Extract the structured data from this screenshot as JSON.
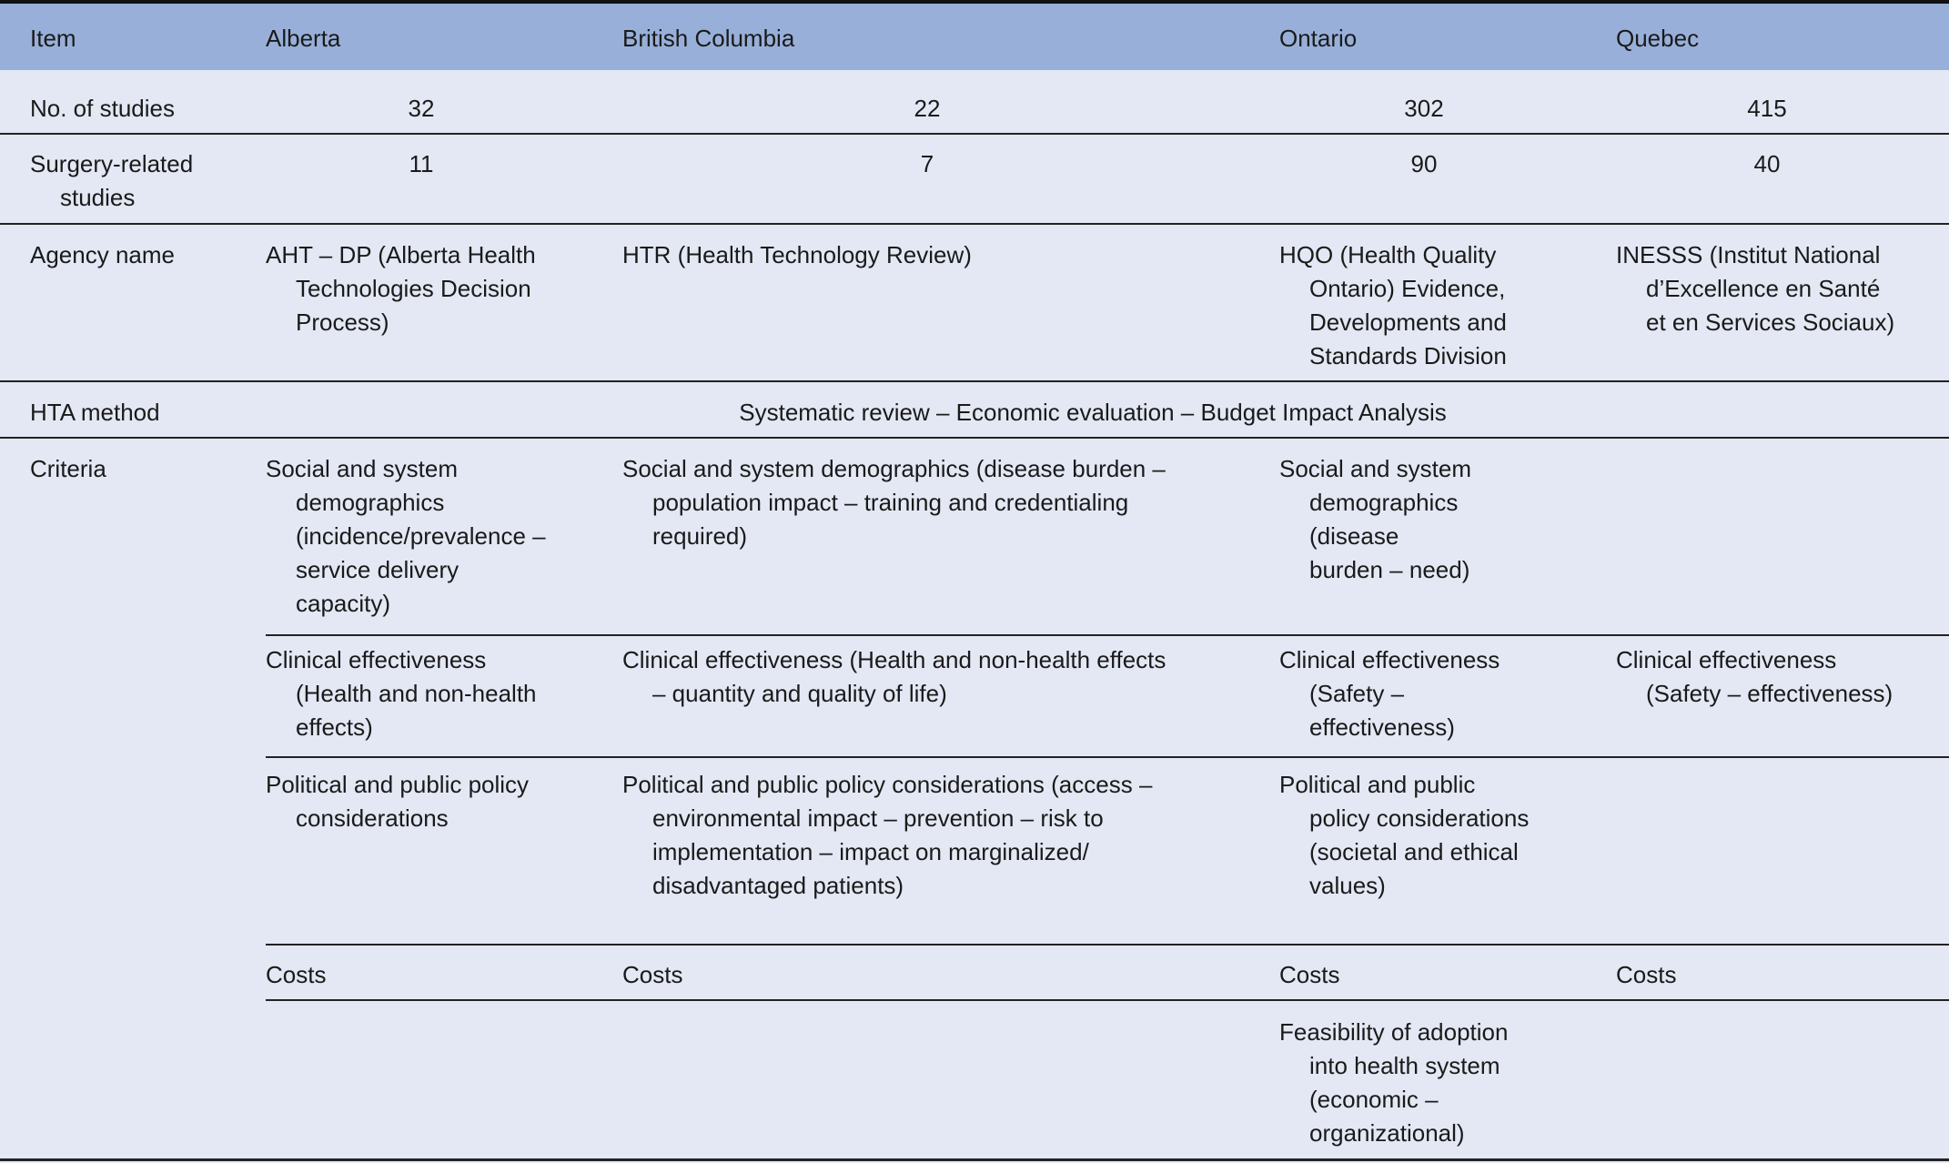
{
  "header": [
    "Item",
    "Alberta",
    "British Columbia",
    "Ontario",
    "Quebec"
  ],
  "studies": {
    "label": "No. of studies",
    "values": [
      "32",
      "22",
      "302",
      "415"
    ]
  },
  "surgery": {
    "label": "Surgery-related\nstudies",
    "values": [
      "11",
      "7",
      "90",
      "40"
    ]
  },
  "agency": {
    "label": "Agency name",
    "values": [
      "AHT – DP (Alberta Health\nTechnologies Decision\nProcess)",
      "HTR (Health Technology Review)",
      "HQO (Health Quality\nOntario) Evidence,\nDevelopments and\nStandards Division",
      "INESSS (Institut National\nd’Excellence en Santé\net en Services Sociaux)"
    ]
  },
  "hta": {
    "label": "HTA method",
    "value": "Systematic review – Economic evaluation – Budget Impact Analysis"
  },
  "criteria": {
    "label": "Criteria",
    "rows": [
      [
        "Social and system\ndemographics\n(incidence/prevalence –\nservice delivery\ncapacity)",
        "Social and system demographics (disease burden –\npopulation impact – training and credentialing\nrequired)",
        "Social and system\ndemographics\n(disease\nburden – need)",
        ""
      ],
      [
        "Clinical effectiveness\n(Health and non-health\neffects)",
        "Clinical effectiveness (Health and non-health effects\n– quantity and quality of life)",
        "Clinical effectiveness\n(Safety –\neffectiveness)",
        "Clinical effectiveness\n(Safety – effectiveness)"
      ],
      [
        "Political and public policy\nconsiderations",
        "Political and public policy considerations (access –\nenvironmental impact – prevention – risk to\nimplementation – impact on marginalized/\ndisadvantaged patients)",
        "Political and public\npolicy considerations\n(societal and ethical\nvalues)",
        ""
      ],
      [
        "Costs",
        "Costs",
        "Costs",
        "Costs"
      ],
      [
        "",
        "",
        "Feasibility of adoption\ninto health system\n(economic –\norganizational)",
        ""
      ]
    ]
  }
}
